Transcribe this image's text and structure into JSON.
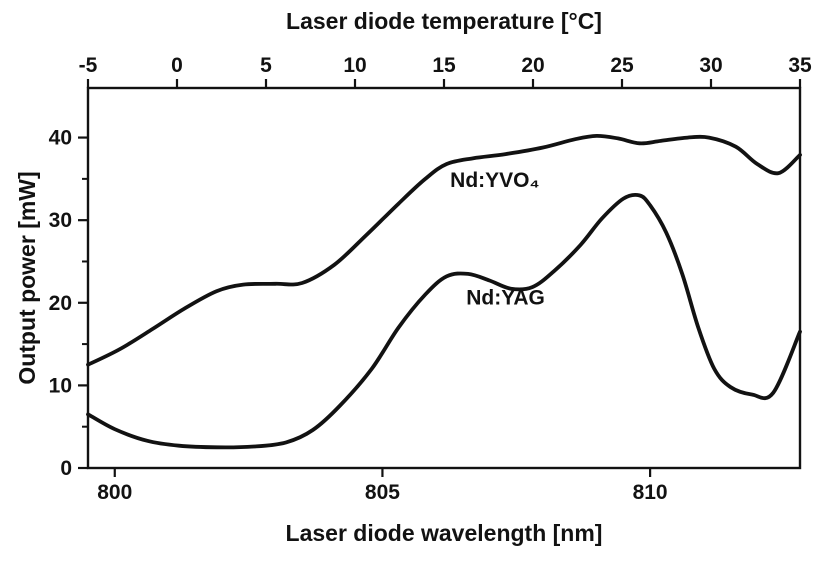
{
  "page": {
    "background": "#ffffff",
    "ink": "#121212"
  },
  "chart_data": {
    "type": "line",
    "title": "",
    "xlabel": "Laser diode wavelength [nm]",
    "x2label": "Laser diode temperature [°C]",
    "ylabel": "Output power [mW]",
    "grid": false,
    "legend_position": "inline-labels",
    "axes": {
      "x": {
        "range": [
          799.5,
          812.8
        ],
        "ticks": [
          800,
          805,
          810
        ],
        "tick_labels": [
          "800",
          "805",
          "810"
        ]
      },
      "x2": {
        "range": [
          -5,
          35
        ],
        "ticks": [
          -5,
          0,
          5,
          10,
          15,
          20,
          25,
          30,
          35
        ],
        "tick_labels": [
          "-5",
          "0",
          "5",
          "10",
          "15",
          "20",
          "25",
          "30",
          "35"
        ]
      },
      "y": {
        "range": [
          0,
          46
        ],
        "ticks": [
          0,
          10,
          20,
          30,
          40
        ],
        "tick_labels": [
          "0",
          "10",
          "20",
          "30",
          "40"
        ],
        "minor_ticks": [
          5,
          15,
          25,
          35
        ]
      }
    },
    "series": [
      {
        "name": "Nd:YVO₄",
        "label": {
          "text": "Nd:YVO₄",
          "x": 807.1,
          "y": 34.0
        },
        "points": [
          [
            799.5,
            12.5
          ],
          [
            800.1,
            14.4
          ],
          [
            800.7,
            16.8
          ],
          [
            801.3,
            19.3
          ],
          [
            801.9,
            21.4
          ],
          [
            802.4,
            22.2
          ],
          [
            803.0,
            22.3
          ],
          [
            803.5,
            22.4
          ],
          [
            804.1,
            24.6
          ],
          [
            804.7,
            28.2
          ],
          [
            805.3,
            32.0
          ],
          [
            805.8,
            35.0
          ],
          [
            806.2,
            36.8
          ],
          [
            806.7,
            37.5
          ],
          [
            807.3,
            38.0
          ],
          [
            808.0,
            38.8
          ],
          [
            808.6,
            39.8
          ],
          [
            809.0,
            40.2
          ],
          [
            809.4,
            39.9
          ],
          [
            809.8,
            39.3
          ],
          [
            810.2,
            39.6
          ],
          [
            810.7,
            40.0
          ],
          [
            811.1,
            40.0
          ],
          [
            811.6,
            38.9
          ],
          [
            812.0,
            36.8
          ],
          [
            812.4,
            35.7
          ],
          [
            812.8,
            37.9
          ]
        ]
      },
      {
        "name": "Nd:YAG",
        "label": {
          "text": "Nd:YAG",
          "x": 807.3,
          "y": 19.8
        },
        "points": [
          [
            799.5,
            6.5
          ],
          [
            800.0,
            4.7
          ],
          [
            800.6,
            3.3
          ],
          [
            801.2,
            2.7
          ],
          [
            801.9,
            2.5
          ],
          [
            802.6,
            2.6
          ],
          [
            803.2,
            3.1
          ],
          [
            803.7,
            4.6
          ],
          [
            804.2,
            7.5
          ],
          [
            804.8,
            12.0
          ],
          [
            805.3,
            17.0
          ],
          [
            805.8,
            21.0
          ],
          [
            806.2,
            23.2
          ],
          [
            806.6,
            23.5
          ],
          [
            807.0,
            22.7
          ],
          [
            807.4,
            21.7
          ],
          [
            807.8,
            21.9
          ],
          [
            808.2,
            23.8
          ],
          [
            808.7,
            27.0
          ],
          [
            809.1,
            30.2
          ],
          [
            809.5,
            32.6
          ],
          [
            809.8,
            33.0
          ],
          [
            810.0,
            31.8
          ],
          [
            810.3,
            28.5
          ],
          [
            810.6,
            23.5
          ],
          [
            810.9,
            17.0
          ],
          [
            811.2,
            12.0
          ],
          [
            811.5,
            9.8
          ],
          [
            811.9,
            8.9
          ],
          [
            812.3,
            9.1
          ],
          [
            812.8,
            16.5
          ]
        ]
      }
    ]
  }
}
